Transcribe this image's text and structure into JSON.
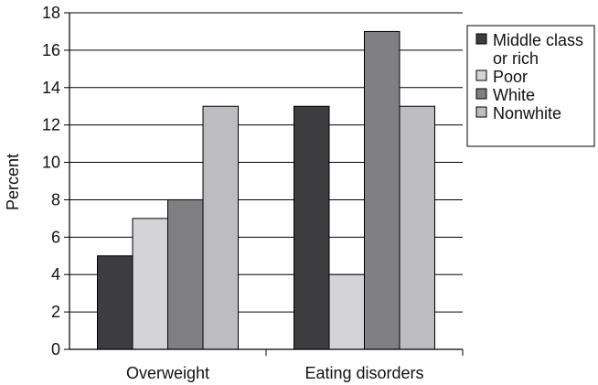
{
  "chart_data": {
    "type": "bar",
    "ylabel": "Percent",
    "xlabel": "",
    "ylim": [
      0,
      18
    ],
    "yticks": [
      0,
      2,
      4,
      6,
      8,
      10,
      12,
      14,
      16,
      18
    ],
    "grid": true,
    "legend_position": "right",
    "categories": [
      "Overweight",
      "Eating disorders"
    ],
    "series": [
      {
        "name": "Middle class or rich",
        "legend_lines": [
          "Middle class",
          "or rich"
        ],
        "color": "#3d3d3f",
        "values": [
          5,
          13
        ]
      },
      {
        "name": "Poor",
        "legend_lines": [
          "Poor"
        ],
        "color": "#d4d4d6",
        "values": [
          7,
          4
        ]
      },
      {
        "name": "White",
        "legend_lines": [
          "White"
        ],
        "color": "#808083",
        "values": [
          8,
          17
        ]
      },
      {
        "name": "Nonwhite",
        "legend_lines": [
          "Nonwhite"
        ],
        "color": "#bdbdc1",
        "values": [
          13,
          13
        ]
      }
    ]
  }
}
